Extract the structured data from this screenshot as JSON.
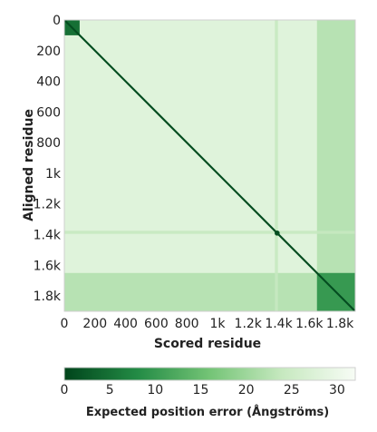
{
  "chart_data": {
    "type": "heatmap",
    "title": "",
    "xlabel": "Scored residue",
    "ylabel": "Aligned residue",
    "x_range": [
      0,
      1900
    ],
    "y_range": [
      0,
      1900
    ],
    "x_ticks": [
      {
        "value": 0,
        "label": "0"
      },
      {
        "value": 200,
        "label": "200"
      },
      {
        "value": 400,
        "label": "400"
      },
      {
        "value": 600,
        "label": "600"
      },
      {
        "value": 800,
        "label": "800"
      },
      {
        "value": 1000,
        "label": "1k"
      },
      {
        "value": 1200,
        "label": "1.2k"
      },
      {
        "value": 1400,
        "label": "1.4k"
      },
      {
        "value": 1600,
        "label": "1.6k"
      },
      {
        "value": 1800,
        "label": "1.8k"
      }
    ],
    "y_ticks": [
      {
        "value": 0,
        "label": "0"
      },
      {
        "value": 200,
        "label": "200"
      },
      {
        "value": 400,
        "label": "400"
      },
      {
        "value": 600,
        "label": "600"
      },
      {
        "value": 800,
        "label": "800"
      },
      {
        "value": 1000,
        "label": "1k"
      },
      {
        "value": 1200,
        "label": "1.2k"
      },
      {
        "value": 1400,
        "label": "1.4k"
      },
      {
        "value": 1600,
        "label": "1.6k"
      },
      {
        "value": 1800,
        "label": "1.8k"
      }
    ],
    "colorbar": {
      "title": "Expected position error (Ångströms)",
      "range": [
        0,
        32
      ],
      "ticks": [
        {
          "value": 0,
          "label": "0"
        },
        {
          "value": 5,
          "label": "5"
        },
        {
          "value": 10,
          "label": "10"
        },
        {
          "value": 15,
          "label": "15"
        },
        {
          "value": 20,
          "label": "20"
        },
        {
          "value": 25,
          "label": "25"
        },
        {
          "value": 30,
          "label": "30"
        }
      ],
      "colors": [
        "#00441b",
        "#238b45",
        "#74c476",
        "#c7e9c0",
        "#f7fcf5"
      ]
    },
    "background_error": 28,
    "diagonal_error": 1,
    "blocks": [
      {
        "start": 0,
        "end": 100,
        "error": 5
      },
      {
        "start": 1650,
        "end": 1900,
        "error": 10
      }
    ],
    "bands": [
      {
        "start": 1650,
        "end": 1900,
        "error": 22
      },
      {
        "start": 1375,
        "end": 1395,
        "error": 24
      }
    ],
    "marker": {
      "x": 1390,
      "y": 1390
    }
  }
}
